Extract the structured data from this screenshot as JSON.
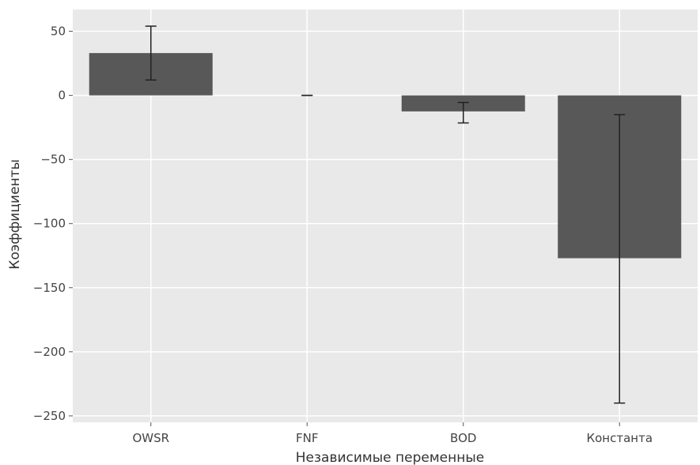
{
  "chart_data": {
    "type": "bar",
    "title": "",
    "xlabel": "Независимые переменные",
    "ylabel": "Коэффициенты",
    "categories": [
      "OWSR",
      "FNF",
      "BOD",
      "Константа"
    ],
    "values": [
      33,
      0,
      -12.5,
      -127
    ],
    "error_low": [
      12,
      0,
      -21.5,
      -240
    ],
    "error_high": [
      54,
      0,
      -5.5,
      -15
    ],
    "ylim": [
      -255,
      67
    ],
    "yticks": [
      50,
      0,
      -50,
      -100,
      -150,
      -200,
      -250
    ],
    "ytick_labels": [
      "50",
      "0",
      "−50",
      "−100",
      "−150",
      "−200",
      "−250"
    ],
    "grid": true,
    "colors": {
      "plot_background": "#e9e9e9",
      "grid": "#ffffff",
      "bar": "#585858",
      "errorbar": "#222222"
    }
  }
}
